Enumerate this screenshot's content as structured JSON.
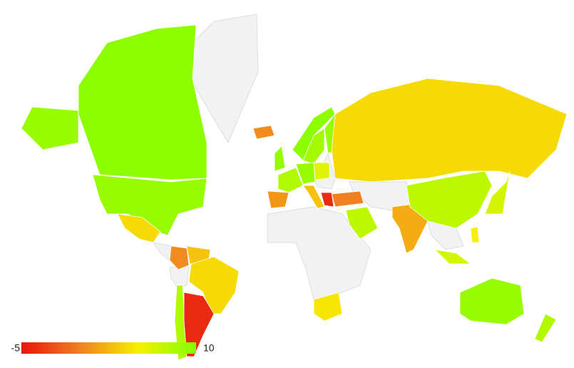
{
  "chart_data": {
    "type": "choropleth",
    "values": [
      9.5,
      9,
      4,
      0.5,
      3,
      4,
      8,
      -4,
      0.5,
      9,
      9.5,
      8.5,
      9,
      4,
      8,
      1,
      9,
      6,
      3,
      0,
      7.5,
      2,
      7.5,
      6.5,
      6.5,
      5,
      9,
      8,
      4.5,
      -4
    ],
    "colorlim": [
      -5,
      10
    ],
    "colorticks": [
      -5,
      10
    ],
    "colors": [
      "#e8140c",
      "#f08020",
      "#f8f000",
      "#80ff00"
    ]
  }
}
